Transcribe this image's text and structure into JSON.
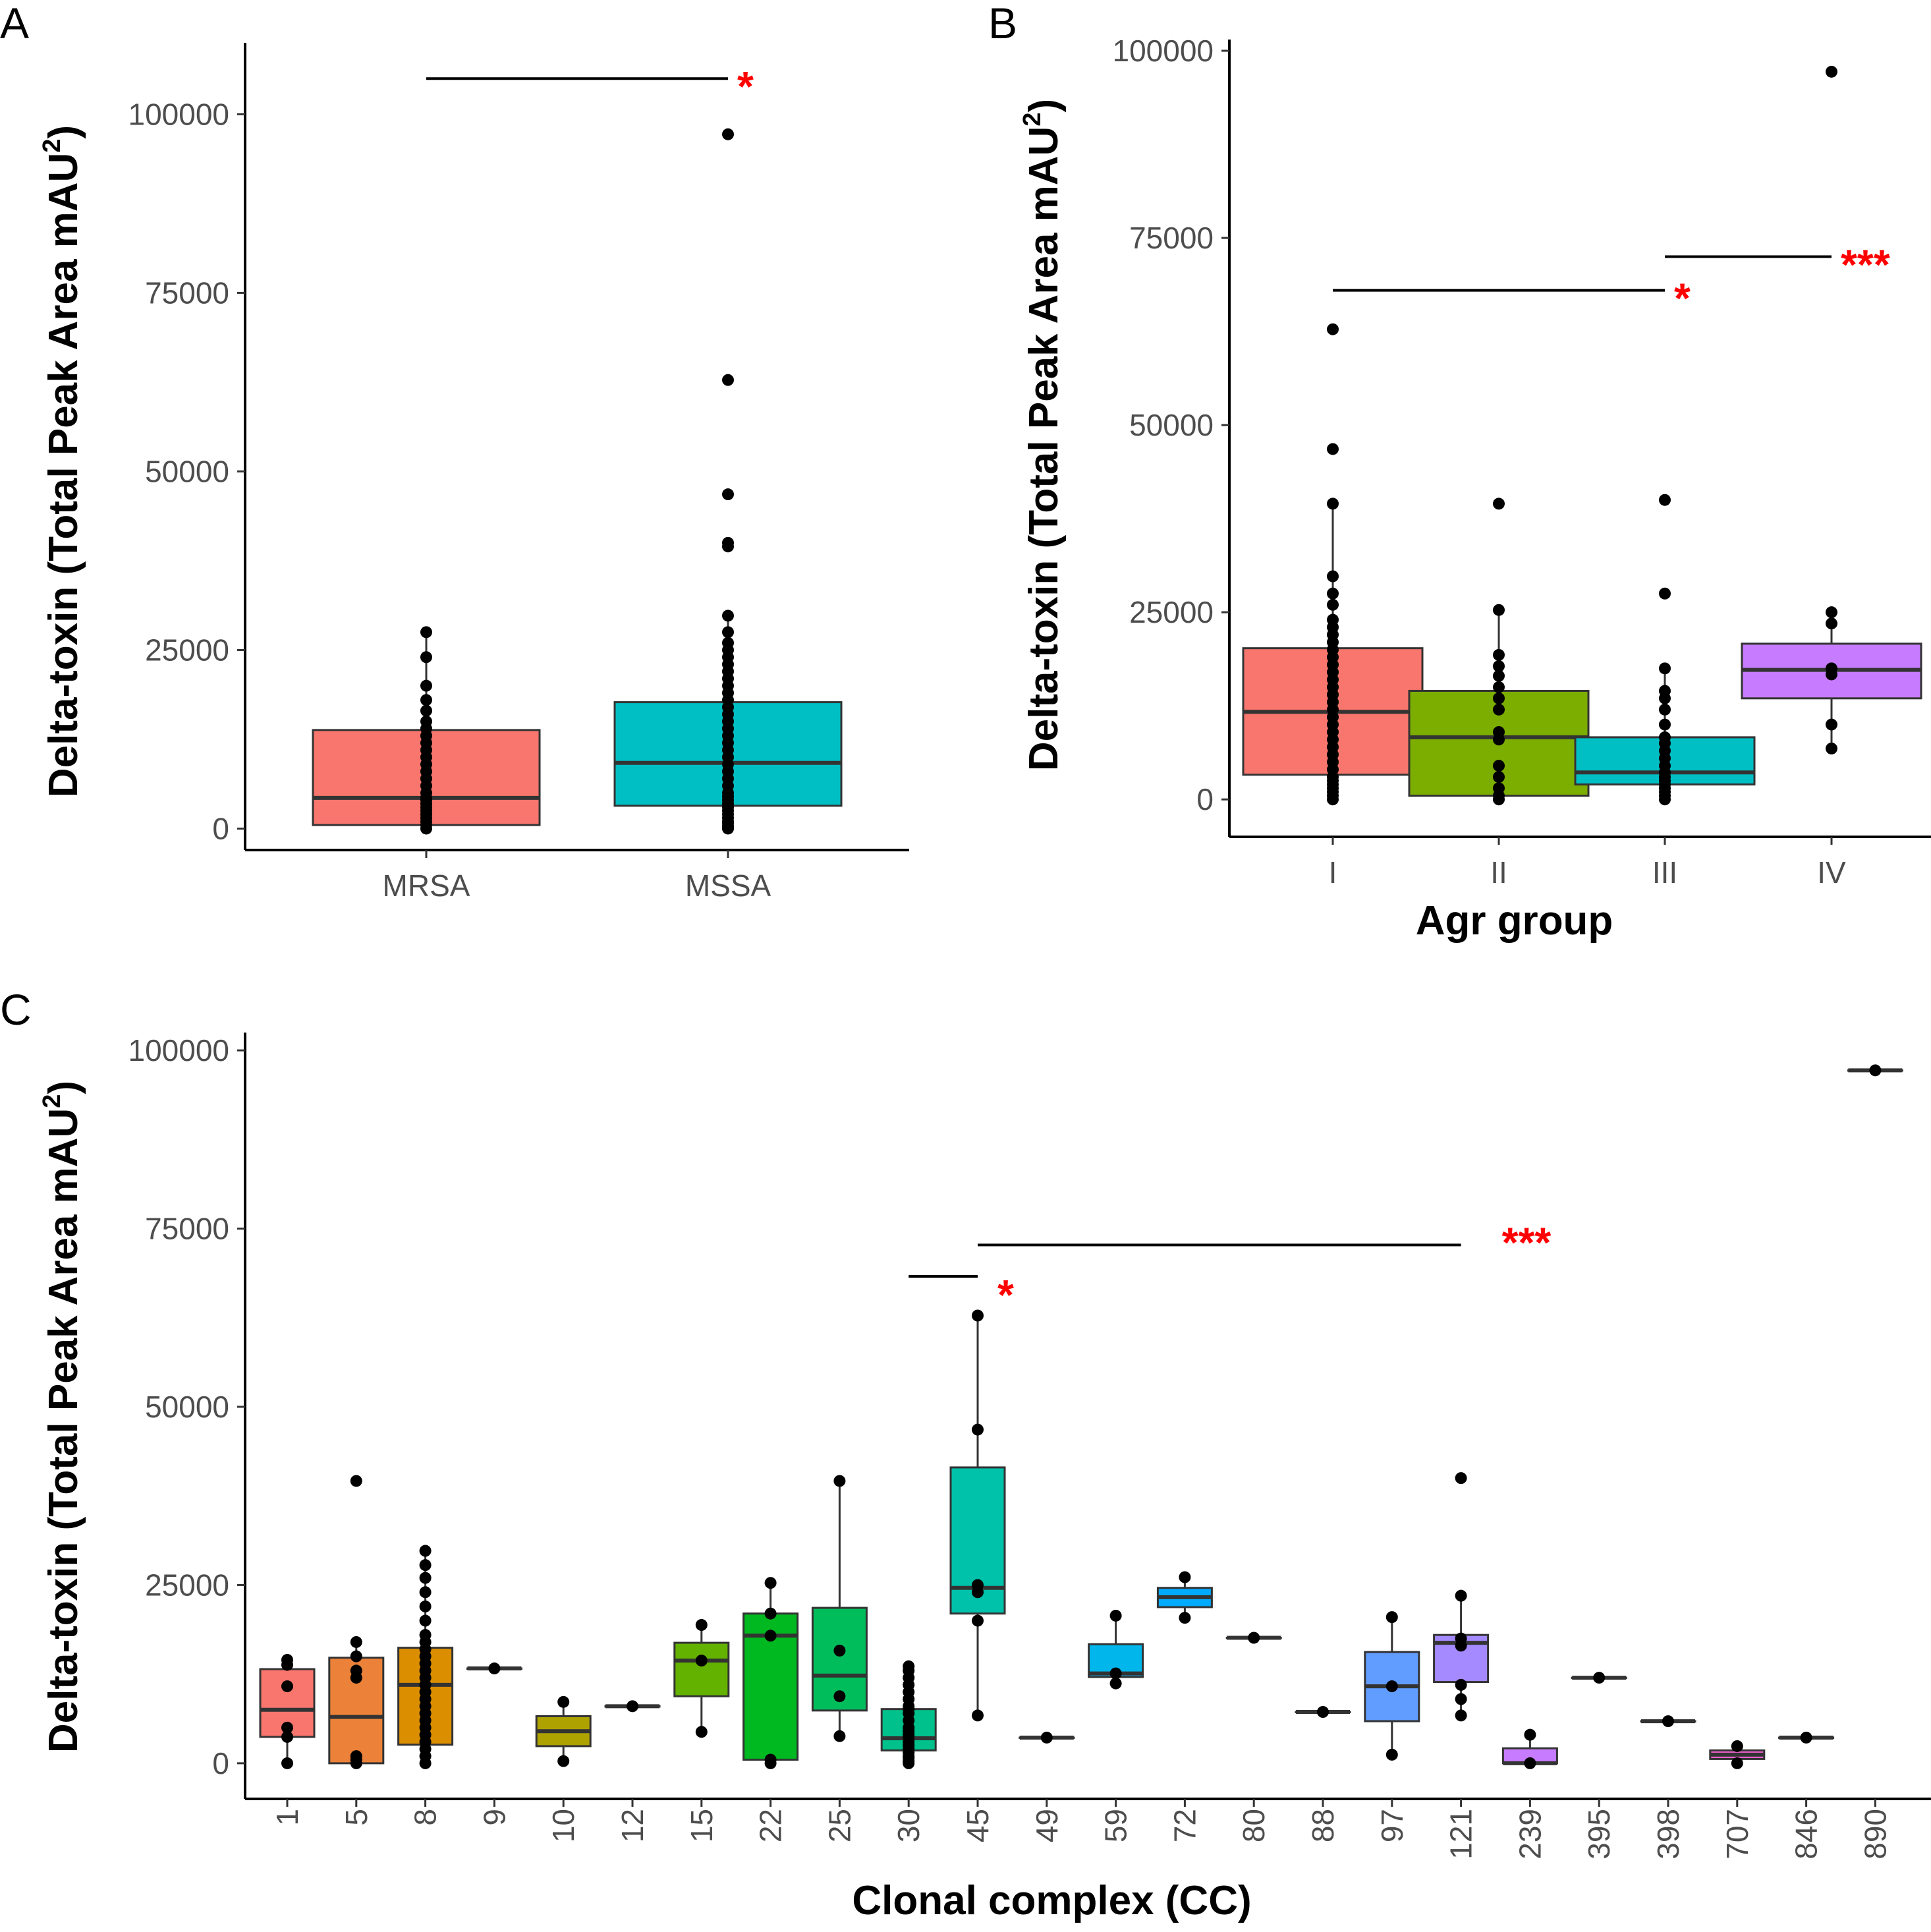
{
  "chart_data": [
    {
      "panel": "A",
      "type": "box",
      "ylabel": "Delta-toxin (Total Peak Area mAU",
      "ylabel_sup": "2",
      "ylabel_end": ")",
      "xlabel": "",
      "yticks": [
        0,
        25000,
        50000,
        75000,
        100000
      ],
      "ylim": [
        -3000,
        110000
      ],
      "categories": [
        "MRSA",
        "MSSA"
      ],
      "boxes": [
        {
          "cat": "MRSA",
          "q1": 500,
          "median": 4300,
          "q3": 13800,
          "wlo": 0,
          "whi": 27500,
          "fill": "#F8766D",
          "points": [
            0,
            500,
            1000,
            1500,
            2000,
            2500,
            3000,
            3500,
            4000,
            4300,
            5000,
            6000,
            7000,
            8000,
            9000,
            10000,
            11000,
            12000,
            13000,
            14000,
            15000,
            16500,
            18000,
            20000,
            24000,
            27500
          ]
        },
        {
          "cat": "MSSA",
          "q1": 3200,
          "median": 9200,
          "q3": 17700,
          "wlo": 0,
          "whi": 29800,
          "fill": "#00BFC4",
          "points": [
            0,
            300,
            700,
            1000,
            1500,
            2000,
            2500,
            3000,
            3500,
            4000,
            4500,
            5000,
            6000,
            7000,
            8000,
            9000,
            10000,
            11000,
            12000,
            13000,
            14000,
            15000,
            16000,
            17000,
            18000,
            19000,
            20000,
            21000,
            22000,
            23000,
            24000,
            25000,
            26000,
            27500,
            29800,
            39500,
            40000,
            46800,
            62800,
            97200
          ]
        }
      ],
      "brackets": [
        {
          "from": "MRSA",
          "to": "MSSA",
          "y": 105000,
          "label": "*"
        }
      ]
    },
    {
      "panel": "B",
      "type": "box",
      "ylabel": "Delta-toxin (Total Peak Area mAU",
      "ylabel_sup": "2",
      "ylabel_end": ")",
      "xlabel": "Agr group",
      "yticks": [
        0,
        25000,
        50000,
        75000,
        100000
      ],
      "ylim": [
        -5000,
        101500
      ],
      "categories": [
        "I",
        "II",
        "III",
        "IV"
      ],
      "boxes": [
        {
          "cat": "I",
          "q1": 3300,
          "median": 11700,
          "q3": 20200,
          "wlo": 0,
          "whi": 39500,
          "fill": "#F8766D",
          "points": [
            0,
            500,
            1000,
            1500,
            2000,
            2500,
            3000,
            4000,
            5000,
            6000,
            7000,
            8000,
            9000,
            10000,
            11000,
            12000,
            13000,
            14000,
            15000,
            16000,
            17000,
            18000,
            19000,
            20000,
            21000,
            22000,
            23000,
            24000,
            26000,
            27500,
            29800,
            39500,
            46800,
            62800
          ]
        },
        {
          "cat": "II",
          "q1": 500,
          "median": 8300,
          "q3": 14500,
          "wlo": 0,
          "whi": 25300,
          "fill": "#7CAE00",
          "points": [
            0,
            500,
            1500,
            3000,
            4500,
            8000,
            9000,
            12000,
            13500,
            15000,
            16500,
            17800,
            19300,
            25300,
            39500
          ]
        },
        {
          "cat": "III",
          "q1": 2000,
          "median": 3600,
          "q3": 8300,
          "wlo": 0,
          "whi": 17500,
          "fill": "#00BFC4",
          "points": [
            0,
            500,
            1000,
            1500,
            2000,
            2500,
            3000,
            3600,
            4500,
            5500,
            6500,
            7500,
            8300,
            10000,
            12000,
            13500,
            14500,
            17500,
            27500,
            40000
          ]
        },
        {
          "cat": "IV",
          "q1": 13500,
          "median": 17300,
          "q3": 20800,
          "wlo": 6800,
          "whi": 25000,
          "fill": "#C77CFF",
          "points": [
            6800,
            10000,
            16700,
            17500,
            23500,
            25000,
            97200
          ]
        }
      ],
      "brackets": [
        {
          "from": "I",
          "to": "III",
          "y": 68000,
          "label": "*"
        },
        {
          "from": "III",
          "to": "IV",
          "y": 72500,
          "label": "***"
        }
      ]
    },
    {
      "panel": "C",
      "type": "box",
      "ylabel": "Delta-toxin (Total Peak Area mAU",
      "ylabel_sup": "2",
      "ylabel_end": ")",
      "xlabel": "Clonal complex (CC)",
      "yticks": [
        0,
        25000,
        50000,
        75000,
        100000
      ],
      "ylim": [
        -5000,
        102500
      ],
      "categories": [
        "1",
        "5",
        "8",
        "9",
        "10",
        "12",
        "15",
        "22",
        "25",
        "30",
        "45",
        "49",
        "59",
        "72",
        "80",
        "88",
        "97",
        "121",
        "239",
        "395",
        "398",
        "707",
        "846",
        "890"
      ],
      "boxes": [
        {
          "cat": "1",
          "q1": 3700,
          "median": 7500,
          "q3": 13200,
          "wlo": 0,
          "whi": 14500,
          "fill": "#F8766D",
          "points": [
            0,
            3700,
            5000,
            10800,
            13800,
            14500
          ]
        },
        {
          "cat": "5",
          "q1": 0,
          "median": 6500,
          "q3": 14800,
          "wlo": 0,
          "whi": 17000,
          "fill": "#EC8239",
          "points": [
            0,
            500,
            1000,
            12000,
            13000,
            15000,
            17000,
            39600
          ]
        },
        {
          "cat": "8",
          "q1": 2600,
          "median": 11000,
          "q3": 16200,
          "wlo": 0,
          "whi": 29800,
          "fill": "#DB8E00",
          "points": [
            0,
            1000,
            2000,
            3000,
            4000,
            5000,
            6000,
            7000,
            8000,
            9000,
            10000,
            11000,
            12000,
            13000,
            14000,
            15000,
            16000,
            17000,
            18000,
            20000,
            22000,
            24000,
            26000,
            27800,
            29800
          ]
        },
        {
          "cat": "9",
          "q1": 13300,
          "median": 13300,
          "q3": 13300,
          "wlo": 13300,
          "whi": 13300,
          "fill": "#C79800",
          "points": [
            13300
          ]
        },
        {
          "cat": "10",
          "q1": 2400,
          "median": 4500,
          "q3": 6600,
          "wlo": 300,
          "whi": 8600,
          "fill": "#AEA200",
          "points": [
            300,
            8600
          ]
        },
        {
          "cat": "12",
          "q1": 8000,
          "median": 8000,
          "q3": 8000,
          "wlo": 8000,
          "whi": 8000,
          "fill": "#8FAA00",
          "points": [
            8000
          ]
        },
        {
          "cat": "15",
          "q1": 9400,
          "median": 14400,
          "q3": 16900,
          "wlo": 4400,
          "whi": 19400,
          "fill": "#64B200",
          "points": [
            4400,
            14400,
            19400
          ]
        },
        {
          "cat": "22",
          "q1": 500,
          "median": 17900,
          "q3": 21000,
          "wlo": 0,
          "whi": 25300,
          "fill": "#00B81F",
          "points": [
            0,
            500,
            17900,
            21000,
            25300
          ]
        },
        {
          "cat": "25",
          "q1": 7400,
          "median": 12300,
          "q3": 21800,
          "wlo": 3800,
          "whi": 39600,
          "fill": "#00BD5C",
          "points": [
            3800,
            9400,
            15800,
            39600
          ]
        },
        {
          "cat": "30",
          "q1": 1800,
          "median": 3500,
          "q3": 7600,
          "wlo": 0,
          "whi": 13600,
          "fill": "#00C08B",
          "points": [
            0,
            300,
            700,
            1000,
            1500,
            2000,
            2500,
            3000,
            3500,
            4000,
            4500,
            5000,
            6000,
            7000,
            7600,
            8000,
            9000,
            10000,
            11000,
            12000,
            13000,
            13600
          ]
        },
        {
          "cat": "45",
          "q1": 21000,
          "median": 24600,
          "q3": 41500,
          "wlo": 6700,
          "whi": 62800,
          "fill": "#00C1AA",
          "points": [
            6700,
            20000,
            24000,
            25000,
            46800,
            62800
          ]
        },
        {
          "cat": "49",
          "q1": 3600,
          "median": 3600,
          "q3": 3600,
          "wlo": 3600,
          "whi": 3600,
          "fill": "#00BCD8",
          "points": [
            3600
          ]
        },
        {
          "cat": "59",
          "q1": 12100,
          "median": 12600,
          "q3": 16700,
          "wlo": 11200,
          "whi": 20700,
          "fill": "#00B6EB",
          "points": [
            11200,
            12600,
            20700
          ]
        },
        {
          "cat": "72",
          "q1": 21900,
          "median": 23300,
          "q3": 24600,
          "wlo": 20400,
          "whi": 26100,
          "fill": "#00ABFD",
          "points": [
            20400,
            26100
          ]
        },
        {
          "cat": "80",
          "q1": 17600,
          "median": 17600,
          "q3": 17600,
          "wlo": 17600,
          "whi": 17600,
          "fill": "#35A2FF",
          "points": [
            17600
          ]
        },
        {
          "cat": "88",
          "q1": 7200,
          "median": 7200,
          "q3": 7200,
          "wlo": 7200,
          "whi": 7200,
          "fill": "#6197FF",
          "points": [
            7200
          ]
        },
        {
          "cat": "97",
          "q1": 5900,
          "median": 10800,
          "q3": 15600,
          "wlo": 1200,
          "whi": 20500,
          "fill": "#619CFF",
          "points": [
            1200,
            10800,
            20500
          ]
        },
        {
          "cat": "121",
          "q1": 11400,
          "median": 16900,
          "q3": 18000,
          "wlo": 6700,
          "whi": 23500,
          "fill": "#A58AFF",
          "points": [
            6700,
            9000,
            11000,
            16500,
            17500,
            23500,
            40000
          ]
        },
        {
          "cat": "239",
          "q1": 0,
          "median": 0,
          "q3": 2100,
          "wlo": 0,
          "whi": 4000,
          "fill": "#C77CFF",
          "points": [
            0,
            4000
          ]
        },
        {
          "cat": "395",
          "q1": 12000,
          "median": 12000,
          "q3": 12000,
          "wlo": 12000,
          "whi": 12000,
          "fill": "#DF70F8",
          "points": [
            12000
          ]
        },
        {
          "cat": "398",
          "q1": 5900,
          "median": 5900,
          "q3": 5900,
          "wlo": 5900,
          "whi": 5900,
          "fill": "#F066EA",
          "points": [
            5900
          ]
        },
        {
          "cat": "707",
          "q1": 600,
          "median": 1200,
          "q3": 1800,
          "wlo": 0,
          "whi": 2400,
          "fill": "#FB61D7",
          "points": [
            0,
            2400
          ]
        },
        {
          "cat": "846",
          "q1": 3600,
          "median": 3600,
          "q3": 3600,
          "wlo": 3600,
          "whi": 3600,
          "fill": "#FF62BC",
          "points": [
            3600
          ]
        },
        {
          "cat": "890",
          "q1": 97200,
          "median": 97200,
          "q3": 97200,
          "wlo": 97200,
          "whi": 97200,
          "fill": "#FF6C91",
          "points": [
            97200
          ]
        }
      ],
      "brackets": [
        {
          "from": "30",
          "to": "45",
          "y": 68300,
          "label": "*"
        },
        {
          "from": "45",
          "to": "121",
          "y": 72700,
          "label": "***"
        }
      ]
    }
  ]
}
